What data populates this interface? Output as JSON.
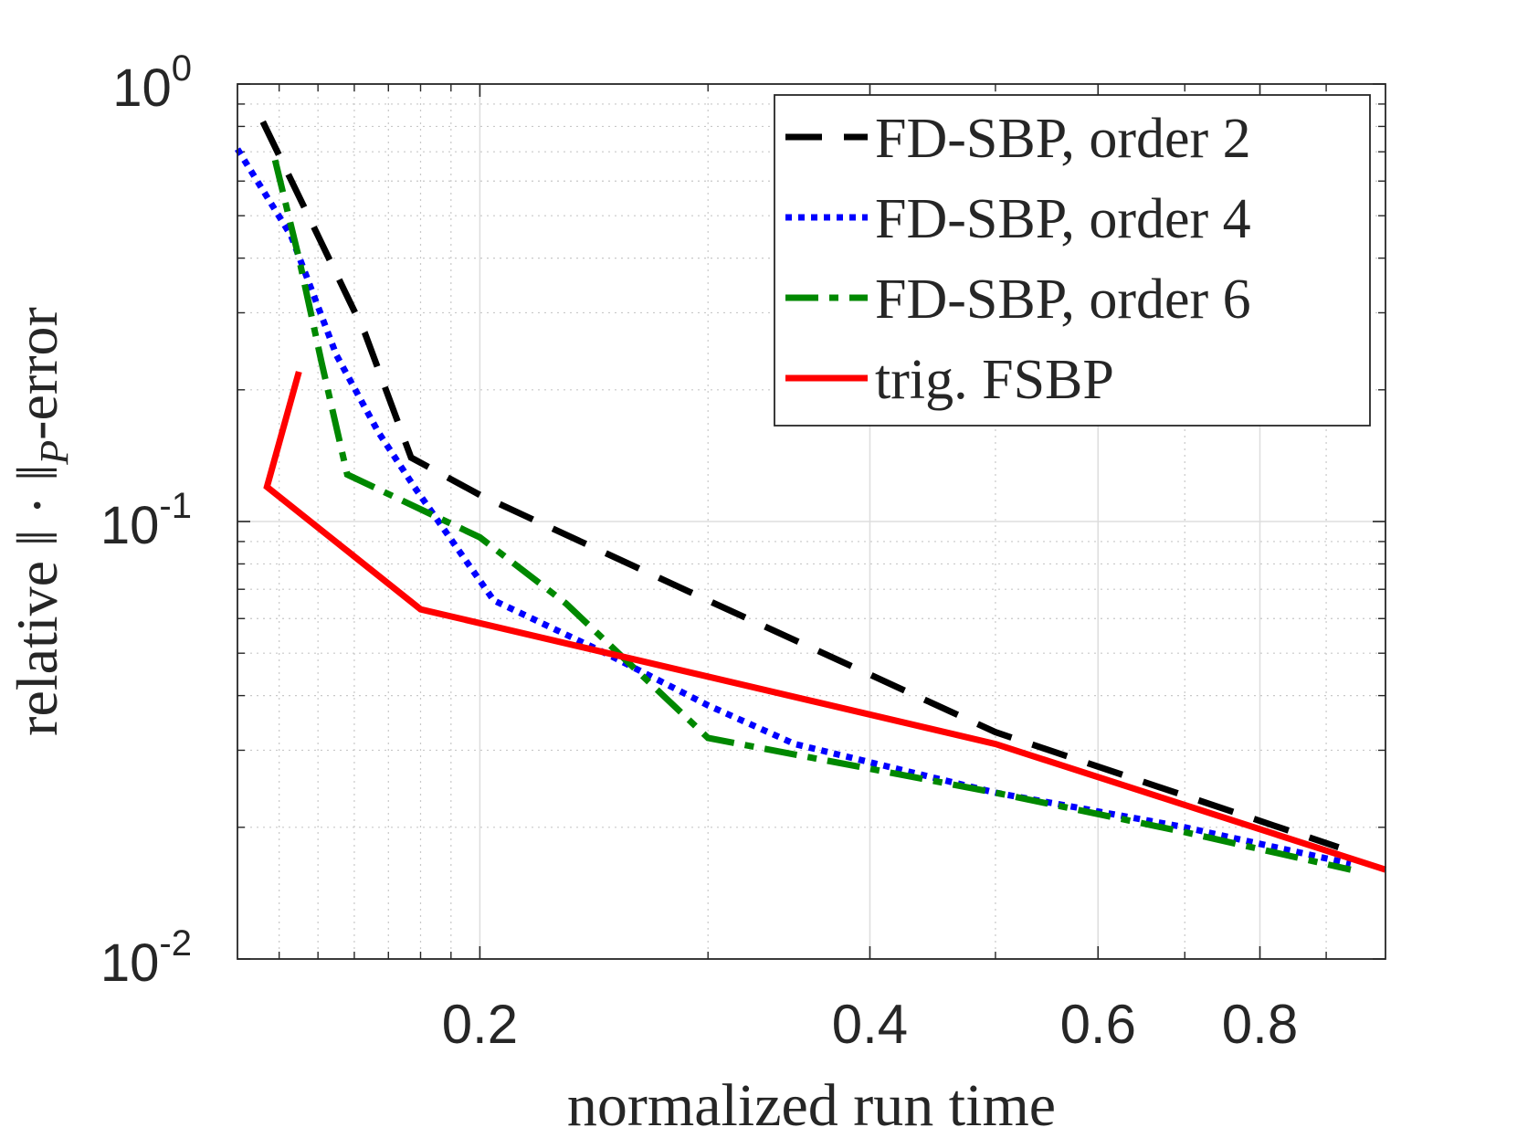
{
  "chart_data": {
    "type": "line",
    "xscale": "log",
    "yscale": "log",
    "xlabel": "normalized run time",
    "ylabel": {
      "prefix": "relative ‖ · ‖",
      "subscript": "P",
      "suffix": "-error"
    },
    "xlim": [
      0.13,
      1.0
    ],
    "ylim": [
      0.01,
      1.0
    ],
    "x_ticks": [
      {
        "value": 0.2,
        "label": "0.2"
      },
      {
        "value": 0.4,
        "label": "0.4"
      },
      {
        "value": 0.6,
        "label": "0.6"
      },
      {
        "value": 0.8,
        "label": "0.8"
      }
    ],
    "y_ticks": [
      {
        "value": 1.0,
        "base": "10",
        "exp": "0"
      },
      {
        "value": 0.1,
        "base": "10",
        "exp": "-1"
      },
      {
        "value": 0.01,
        "base": "10",
        "exp": "-2"
      }
    ],
    "grid": true,
    "legend_position": "top-right",
    "series": [
      {
        "name": "FD-SBP, order 2",
        "color": "#000000",
        "dash": "dashed",
        "x": [
          0.136,
          0.15,
          0.163,
          0.177,
          0.2,
          0.3,
          0.5,
          0.92
        ],
        "y": [
          0.82,
          0.45,
          0.27,
          0.14,
          0.115,
          0.066,
          0.033,
          0.018
        ]
      },
      {
        "name": "FD-SBP, order 4",
        "color": "#0000ff",
        "dash": "dotted",
        "x": [
          0.13,
          0.143,
          0.155,
          0.167,
          0.178,
          0.205,
          0.25,
          0.3,
          0.35,
          0.5,
          0.7,
          0.94
        ],
        "y": [
          0.71,
          0.45,
          0.24,
          0.16,
          0.12,
          0.066,
          0.05,
          0.038,
          0.031,
          0.024,
          0.02,
          0.0165
        ]
      },
      {
        "name": "FD-SBP, order 6",
        "color": "#008800",
        "dash": "dashdot",
        "x": [
          0.139,
          0.145,
          0.151,
          0.158,
          0.2,
          0.233,
          0.3,
          0.5,
          0.7,
          0.94
        ],
        "y": [
          0.67,
          0.4,
          0.23,
          0.128,
          0.092,
          0.065,
          0.032,
          0.024,
          0.0195,
          0.016
        ]
      },
      {
        "name": "trig. FSBP",
        "color": "#ff0000",
        "dash": "solid",
        "x": [
          0.145,
          0.137,
          0.18,
          0.5,
          1.0
        ],
        "y": [
          0.22,
          0.12,
          0.063,
          0.031,
          0.016
        ]
      }
    ]
  }
}
